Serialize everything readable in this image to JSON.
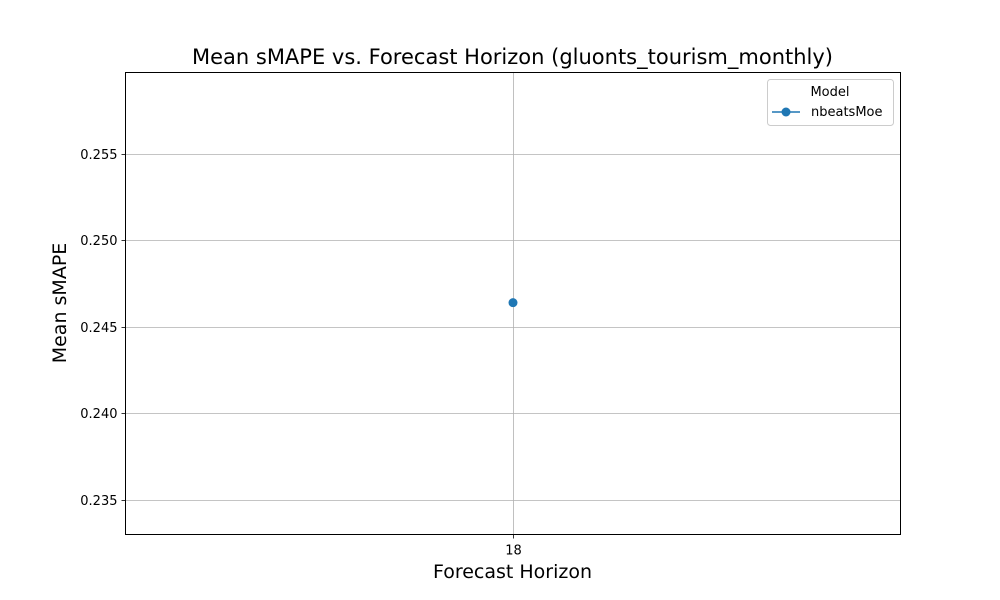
{
  "chart_data": {
    "type": "line",
    "title": "Mean sMAPE vs. Forecast Horizon (gluonts_tourism_monthly)",
    "xlabel": "Forecast Horizon",
    "ylabel": "Mean sMAPE",
    "x_categories": [
      "18"
    ],
    "ylim": [
      0.233,
      0.2597
    ],
    "yticks": [
      0.235,
      0.24,
      0.245,
      0.25,
      0.255
    ],
    "ytick_labels": [
      "0.235",
      "0.240",
      "0.245",
      "0.250",
      "0.255"
    ],
    "grid": true,
    "legend": {
      "title": "Model",
      "placement": "top-right"
    },
    "series": [
      {
        "name": "nbeatsMoe",
        "color": "#1f77b4",
        "marker": "circle",
        "x": [
          "18"
        ],
        "values": [
          0.2464
        ]
      }
    ]
  }
}
